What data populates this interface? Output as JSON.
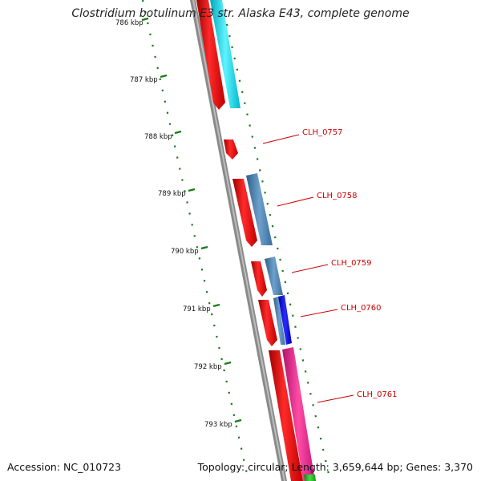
{
  "title": "Clostridium botulinum E3 str. Alaska E43, complete genome",
  "footer": {
    "accession": "Accession: NC_010723",
    "summary": "Topology: circular; Length: 3,659,644 bp; Genes: 3,370"
  },
  "scale": {
    "unit": "kbp",
    "ticks": [
      {
        "label": "786 kbp"
      },
      {
        "label": "787 kbp"
      },
      {
        "label": "788 kbp"
      },
      {
        "label": "789 kbp"
      },
      {
        "label": "790 kbp"
      },
      {
        "label": "791 kbp"
      },
      {
        "label": "792 kbp"
      },
      {
        "label": "793 kbp"
      }
    ]
  },
  "gene_labels": [
    {
      "name": "CLH_0757"
    },
    {
      "name": "CLH_0758"
    },
    {
      "name": "CLH_0759"
    },
    {
      "name": "CLH_0760"
    },
    {
      "name": "CLH_0761"
    }
  ],
  "colors": {
    "cds": "#ff0000",
    "cyan_feature": "#00e5ff",
    "steelblue_feature": "#4682b4",
    "blue_feature": "#0000ee",
    "pink_feature": "#ff1493",
    "green_feature": "#22bb22",
    "backbone": "#8a8a8a",
    "tick": "#1a7a1a",
    "label": "#cc0000"
  }
}
